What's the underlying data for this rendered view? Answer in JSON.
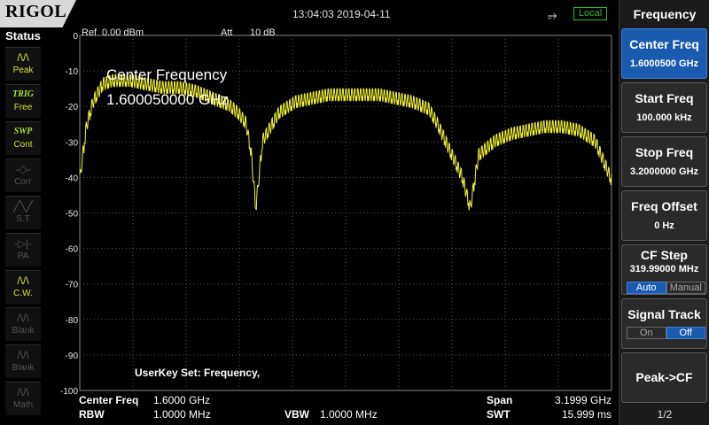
{
  "topbar": {
    "brand": "RIGOL",
    "datetime": "13:04:03 2019-04-11",
    "usb_icon": "usb-icon",
    "remote_status": "Local"
  },
  "status": {
    "title": "Status",
    "items": [
      {
        "glyph": "/\\/\\",
        "label": "Peak",
        "state": "active"
      },
      {
        "glyph": "TRIG",
        "label": "Free",
        "state": "trig"
      },
      {
        "glyph": "SWP",
        "label": "Cont",
        "state": "swp"
      },
      {
        "glyph": "-◇-",
        "label": "Corr",
        "state": "dim"
      },
      {
        "glyph": "╱╲╱",
        "label": "S.T",
        "state": "dim"
      },
      {
        "glyph": "-▷|-",
        "label": "PA",
        "state": "dim"
      },
      {
        "glyph": "/\\/\\",
        "label": "C.W.",
        "state": "active"
      },
      {
        "glyph": "/\\/\\",
        "label": "Blank",
        "state": "dim"
      },
      {
        "glyph": "/\\/\\",
        "label": "Blank",
        "state": "dim"
      },
      {
        "glyph": "/\\/\\",
        "label": "Math",
        "state": "dim"
      }
    ]
  },
  "plot": {
    "ref_label": "Ref",
    "ref_value": "0.00 dBm",
    "att_label": "Att",
    "att_value": "10 dB",
    "y_ticks": [
      "0",
      "-10",
      "-20",
      "-30",
      "-40",
      "-50",
      "-60",
      "-70",
      "-80",
      "-90",
      "-100"
    ],
    "overlay_title": "Center Frequency",
    "overlay_value": "1.600050000 GHz",
    "userkey": "UserKey Set:    Frequency,",
    "trace_color": "#f2f23a",
    "grid_color": "#5a5a5a"
  },
  "chart_data": {
    "type": "line",
    "title": "",
    "xlabel": "",
    "ylabel": "",
    "x_unit": "GHz",
    "y_unit": "dBm",
    "xlim": [
      0.0001,
      3.2
    ],
    "ylim": [
      -100,
      0
    ],
    "grid": true,
    "series": [
      {
        "x": [
          0.0001,
          0.04,
          0.08,
          0.14,
          0.2,
          0.3,
          0.4,
          0.5,
          0.6,
          0.7,
          0.8,
          0.9,
          0.95,
          1.0,
          1.03,
          1.06,
          1.1,
          1.2,
          1.3,
          1.4,
          1.5,
          1.6,
          1.7,
          1.8,
          1.9,
          2.0,
          2.1,
          2.15,
          2.2,
          2.25,
          2.3,
          2.35,
          2.4,
          2.5,
          2.6,
          2.7,
          2.8,
          2.9,
          3.0,
          3.1,
          3.2
        ],
        "y": [
          -39,
          -24,
          -17,
          -12,
          -11,
          -11,
          -12,
          -13,
          -13,
          -14,
          -16,
          -18,
          -20,
          -23,
          -31,
          -47,
          -28,
          -20,
          -17,
          -16,
          -15,
          -15,
          -15,
          -15,
          -16,
          -17,
          -19,
          -23,
          -28,
          -33,
          -38,
          -47,
          -32,
          -28,
          -26,
          -25,
          -24,
          -24,
          -25,
          -28,
          -39
        ]
      }
    ]
  },
  "footer": {
    "center_label": "Center Freq",
    "center_value": "1.6000 GHz",
    "span_label": "Span",
    "span_value": "3.1999 GHz",
    "rbw_label": "RBW",
    "rbw_value": "1.0000 MHz",
    "vbw_label": "VBW",
    "vbw_value": "1.0000 MHz",
    "swt_label": "SWT",
    "swt_value": "15.999 ms"
  },
  "menu": {
    "title": "Frequency",
    "center_freq": {
      "label": "Center Freq",
      "value": "1.6000500 GHz"
    },
    "start_freq": {
      "label": "Start Freq",
      "value": "100.000 kHz"
    },
    "stop_freq": {
      "label": "Stop Freq",
      "value": "3.2000000 GHz"
    },
    "freq_offset": {
      "label": "Freq Offset",
      "value": "0 Hz"
    },
    "cf_step": {
      "label": "CF Step",
      "value": "319.99000 MHz",
      "auto": "Auto",
      "manual": "Manual"
    },
    "signal_track": {
      "label": "Signal Track",
      "on": "On",
      "off": "Off"
    },
    "peak_cf": {
      "label": "Peak->CF"
    },
    "page": "1/2",
    "selected_color": "#1a5bb0"
  }
}
